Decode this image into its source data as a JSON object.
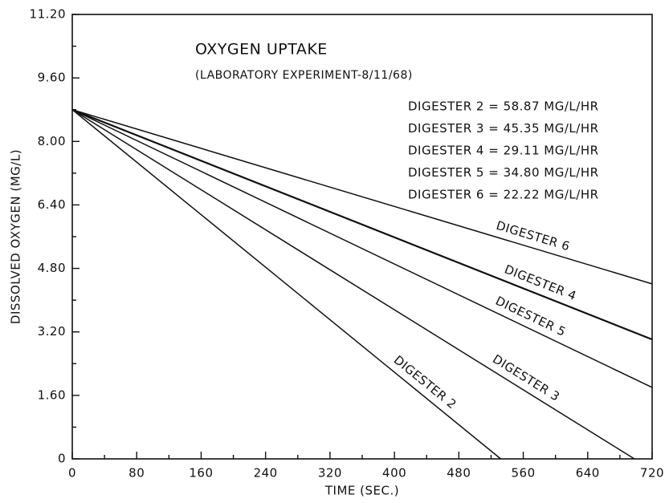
{
  "chart_data": {
    "type": "line",
    "title": "OXYGEN UPTAKE",
    "subtitle": "(LABORATORY EXPERIMENT-8/11/68)",
    "x_label": "TIME (SEC.)",
    "y_label": "DISSOLVED OXYGEN (MG/L)",
    "annotations": [
      "DIGESTER 2 = 58.87 MG/L/HR",
      "DIGESTER 3 = 45.35 MG/L/HR",
      "DIGESTER 4 = 29.11 MG/L/HR",
      "DIGESTER 5 = 34.80 MG/L/HR",
      "DIGESTER 6 = 22.22 MG/L/HR"
    ],
    "series": [
      {
        "name": "DIGESTER 6",
        "color": "#111111",
        "x": [
          0,
          720
        ],
        "values": [
          8.8,
          4.41
        ]
      },
      {
        "name": "DIGESTER 4",
        "color": "#111111",
        "x": [
          0,
          720
        ],
        "values": [
          8.8,
          3.01
        ]
      },
      {
        "name": "DIGESTER 5",
        "color": "#111111",
        "x": [
          0,
          720
        ],
        "values": [
          8.8,
          1.8
        ]
      },
      {
        "name": "DIGESTER 3",
        "color": "#111111",
        "x": [
          0,
          698
        ],
        "values": [
          8.8,
          0
        ]
      },
      {
        "name": "DIGESTER 2",
        "color": "#111111",
        "x": [
          0,
          532
        ],
        "values": [
          8.8,
          0
        ]
      }
    ],
    "xlim": [
      0,
      720
    ],
    "xticks": [
      0,
      80,
      160,
      240,
      320,
      400,
      480,
      560,
      640,
      720
    ],
    "ylim": [
      0,
      11.2
    ],
    "yticks": [
      0,
      {
        "value": 1.6,
        "label": "1.60"
      },
      {
        "value": 3.2,
        "label": "3.20"
      },
      {
        "value": 4.8,
        "label": "4.80"
      },
      {
        "value": 6.4,
        "label": "6.40"
      },
      {
        "value": 8,
        "label": "8.00"
      },
      {
        "value": 9.6,
        "label": "9.60"
      },
      {
        "value": 11.2,
        "label": "11.20"
      }
    ]
  }
}
